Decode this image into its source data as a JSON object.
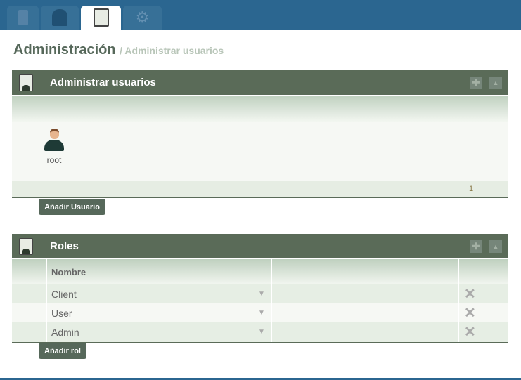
{
  "nav": {
    "tabs": [
      {
        "icon": "settings-book-icon"
      },
      {
        "icon": "user-hat-icon"
      },
      {
        "icon": "user-badge-icon",
        "active": true
      },
      {
        "icon": "tools-icon"
      }
    ]
  },
  "header": {
    "title": "Administración",
    "breadcrumb": "/ Administrar usuarios"
  },
  "users_panel": {
    "title": "Administrar usuarios",
    "users": [
      {
        "name": "root"
      }
    ],
    "page": "1",
    "add_button": "Añadir Usuario"
  },
  "roles_panel": {
    "title": "Roles",
    "column": "Nombre",
    "rows": [
      {
        "name": "Client"
      },
      {
        "name": "User"
      },
      {
        "name": "Admin"
      }
    ],
    "add_button": "Añadir rol"
  },
  "colors": {
    "topbar": "#2b6690",
    "panel": "#5a6b58"
  }
}
